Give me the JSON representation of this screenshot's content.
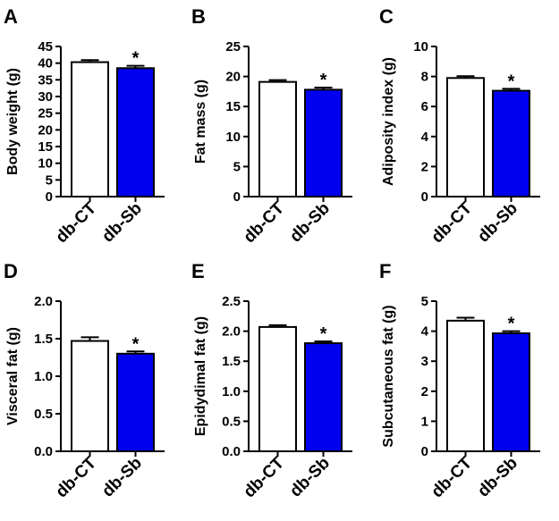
{
  "colors": {
    "control_fill": "#ffffff",
    "treated_fill": "#0000ee",
    "stroke": "#000000"
  },
  "chart_data": [
    {
      "type": "bar",
      "panel_letter": "A",
      "ylabel": "Body weight (g)",
      "categories": [
        "db-CT",
        "db-Sb"
      ],
      "values": [
        40.3,
        38.5
      ],
      "errors": [
        0.6,
        0.7
      ],
      "ylim": [
        0,
        45
      ],
      "yticks": [
        "0",
        "5",
        "10",
        "15",
        "20",
        "25",
        "30",
        "35",
        "40",
        "45"
      ],
      "significance": [
        "",
        "*"
      ]
    },
    {
      "type": "bar",
      "panel_letter": "B",
      "ylabel": "Fat mass (g)",
      "categories": [
        "db-CT",
        "db-Sb"
      ],
      "values": [
        19.1,
        17.8
      ],
      "errors": [
        0.3,
        0.35
      ],
      "ylim": [
        0,
        25
      ],
      "yticks": [
        "0",
        "5",
        "10",
        "15",
        "20",
        "25"
      ],
      "significance": [
        "",
        "*"
      ]
    },
    {
      "type": "bar",
      "panel_letter": "C",
      "ylabel": "Adiposity index (g)",
      "categories": [
        "db-CT",
        "db-Sb"
      ],
      "values": [
        7.9,
        7.05
      ],
      "errors": [
        0.12,
        0.13
      ],
      "ylim": [
        0,
        10
      ],
      "yticks": [
        "0",
        "2",
        "4",
        "6",
        "8",
        "10"
      ],
      "significance": [
        "",
        "*"
      ]
    },
    {
      "type": "bar",
      "panel_letter": "D",
      "ylabel": "Visceral fat (g)",
      "categories": [
        "db-CT",
        "db-Sb"
      ],
      "values": [
        1.47,
        1.3
      ],
      "errors": [
        0.05,
        0.03
      ],
      "ylim": [
        0,
        2.0
      ],
      "yticks": [
        "0.0",
        "0.5",
        "1.0",
        "1.5",
        "2.0"
      ],
      "significance": [
        "",
        "*"
      ]
    },
    {
      "type": "bar",
      "panel_letter": "E",
      "ylabel": "Epidydimal fat (g)",
      "categories": [
        "db-CT",
        "db-Sb"
      ],
      "values": [
        2.07,
        1.8
      ],
      "errors": [
        0.03,
        0.03
      ],
      "ylim": [
        0,
        2.5
      ],
      "yticks": [
        "0.0",
        "0.5",
        "1.0",
        "1.5",
        "2.0",
        "2.5"
      ],
      "significance": [
        "",
        "*"
      ]
    },
    {
      "type": "bar",
      "panel_letter": "F",
      "ylabel": "Subcutaneous fat (g)",
      "categories": [
        "db-CT",
        "db-Sb"
      ],
      "values": [
        4.35,
        3.93
      ],
      "errors": [
        0.1,
        0.07
      ],
      "ylim": [
        0,
        5
      ],
      "yticks": [
        "0",
        "1",
        "2",
        "3",
        "4",
        "5"
      ],
      "significance": [
        "",
        "*"
      ]
    }
  ]
}
